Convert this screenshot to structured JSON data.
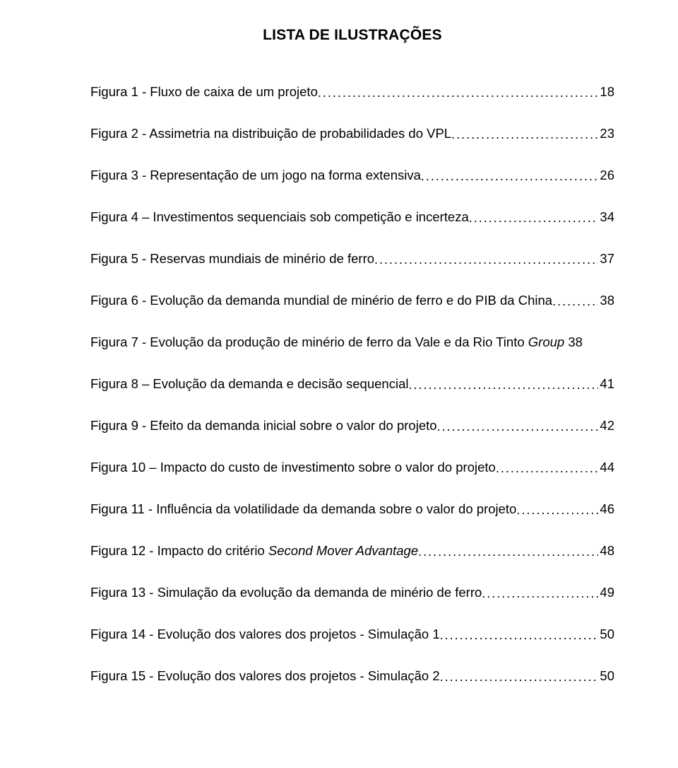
{
  "title": "LISTA DE ILUSTRAÇÕES",
  "entries": [
    {
      "label": "Figura 1 - Fluxo de caixa de um projeto",
      "page": "18",
      "dots": true
    },
    {
      "label": "Figura 2 - Assimetria na distribuição de probabilidades do VPL",
      "page": "23",
      "dots": true
    },
    {
      "label": "Figura 3 - Representação de um jogo na forma extensiva",
      "page": "26",
      "dots": true
    },
    {
      "label": "Figura 4 – Investimentos sequenciais sob competição e incerteza",
      "page": "34",
      "dots": true
    },
    {
      "label": "Figura 5 - Reservas mundiais de minério de ferro",
      "page": "37",
      "dots": true
    },
    {
      "label": "Figura 6 - Evolução da demanda mundial de minério de ferro e do PIB da China",
      "page": "38",
      "dots": true
    },
    {
      "label_pre": "Figura 7 - Evolução da produção de minério de ferro da Vale e da Rio Tinto ",
      "label_italic": "Group",
      "page": " 38",
      "dots": false
    },
    {
      "label": "Figura 8 – Evolução da demanda e decisão sequencial",
      "page": "41",
      "dots": true
    },
    {
      "label": "Figura 9 - Efeito da demanda inicial sobre o valor do projeto",
      "page": "42",
      "dots": true
    },
    {
      "label": "Figura 10 – Impacto do custo de investimento sobre o valor do projeto",
      "page": "44",
      "dots": true
    },
    {
      "label": "Figura 11 - Influência da volatilidade da demanda sobre o valor do projeto",
      "page": "46",
      "dots": true
    },
    {
      "label_pre": "Figura 12 - Impacto do critério ",
      "label_italic": "Second Mover Advantage",
      "page": "48",
      "dots": true
    },
    {
      "label": "Figura 13 - Simulação da evolução da demanda de minério de ferro",
      "page": "49",
      "dots": true
    },
    {
      "label": "Figura 14 - Evolução dos valores dos projetos - Simulação 1",
      "page": "50",
      "dots": true
    },
    {
      "label": "Figura 15 - Evolução dos valores dos projetos - Simulação 2",
      "page": "50",
      "dots": true
    }
  ]
}
